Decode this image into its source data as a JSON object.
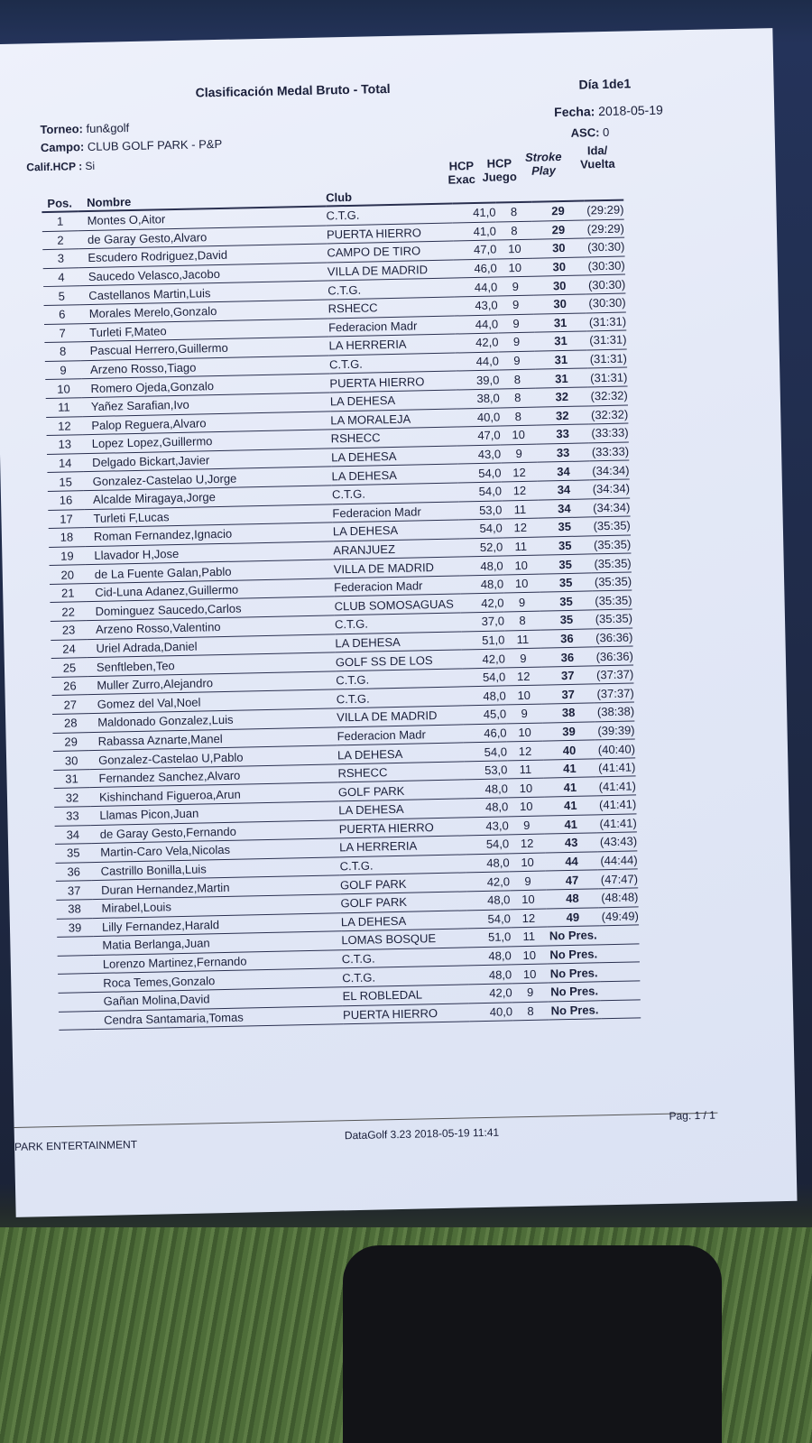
{
  "header": {
    "title": "Clasificación Medal Bruto - Total",
    "dia": "Día 1de1",
    "torneo_label": "Torneo:",
    "torneo": "fun&golf",
    "campo_label": "Campo:",
    "campo": "CLUB GOLF PARK - P&P",
    "calif_label": "Calif.HCP :",
    "calif": "Si",
    "fecha_label": "Fecha:",
    "fecha": "2018-05-19",
    "asc_label": "ASC:",
    "asc": "0"
  },
  "columns": {
    "pos": "Pos.",
    "nombre": "Nombre",
    "club": "Club",
    "hcp_exac": "HCP Exac",
    "hcp_juego": "HCP Juego",
    "stroke": "Stroke Play",
    "ida": "Ida/ Vuelta"
  },
  "rows": [
    [
      "1",
      "Montes O,Aitor",
      "C.T.G.",
      "41,0",
      "8",
      "29",
      "(29:29)"
    ],
    [
      "2",
      "de Garay Gesto,Alvaro",
      "PUERTA HIERRO",
      "41,0",
      "8",
      "29",
      "(29:29)"
    ],
    [
      "3",
      "Escudero Rodriguez,David",
      "CAMPO DE TIRO",
      "47,0",
      "10",
      "30",
      "(30:30)"
    ],
    [
      "4",
      "Saucedo Velasco,Jacobo",
      "VILLA DE MADRID",
      "46,0",
      "10",
      "30",
      "(30:30)"
    ],
    [
      "5",
      "Castellanos Martin,Luis",
      "C.T.G.",
      "44,0",
      "9",
      "30",
      "(30:30)"
    ],
    [
      "6",
      "Morales Merelo,Gonzalo",
      "RSHECC",
      "43,0",
      "9",
      "30",
      "(30:30)"
    ],
    [
      "7",
      "Turleti F,Mateo",
      "Federacion Madr",
      "44,0",
      "9",
      "31",
      "(31:31)"
    ],
    [
      "8",
      "Pascual Herrero,Guillermo",
      "LA HERRERIA",
      "42,0",
      "9",
      "31",
      "(31:31)"
    ],
    [
      "9",
      "Arzeno Rosso,Tiago",
      "C.T.G.",
      "44,0",
      "9",
      "31",
      "(31:31)"
    ],
    [
      "10",
      "Romero Ojeda,Gonzalo",
      "PUERTA HIERRO",
      "39,0",
      "8",
      "31",
      "(31:31)"
    ],
    [
      "11",
      "Yañez Sarafian,Ivo",
      "LA DEHESA",
      "38,0",
      "8",
      "32",
      "(32:32)"
    ],
    [
      "12",
      "Palop Reguera,Alvaro",
      "LA MORALEJA",
      "40,0",
      "8",
      "32",
      "(32:32)"
    ],
    [
      "13",
      "Lopez Lopez,Guillermo",
      "RSHECC",
      "47,0",
      "10",
      "33",
      "(33:33)"
    ],
    [
      "14",
      "Delgado Bickart,Javier",
      "LA DEHESA",
      "43,0",
      "9",
      "33",
      "(33:33)"
    ],
    [
      "15",
      "Gonzalez-Castelao U,Jorge",
      "LA DEHESA",
      "54,0",
      "12",
      "34",
      "(34:34)"
    ],
    [
      "16",
      "Alcalde Miragaya,Jorge",
      "C.T.G.",
      "54,0",
      "12",
      "34",
      "(34:34)"
    ],
    [
      "17",
      "Turleti F,Lucas",
      "Federacion Madr",
      "53,0",
      "11",
      "34",
      "(34:34)"
    ],
    [
      "18",
      "Roman Fernandez,Ignacio",
      "LA DEHESA",
      "54,0",
      "12",
      "35",
      "(35:35)"
    ],
    [
      "19",
      "Llavador H,Jose",
      "ARANJUEZ",
      "52,0",
      "11",
      "35",
      "(35:35)"
    ],
    [
      "20",
      "de La Fuente Galan,Pablo",
      "VILLA DE MADRID",
      "48,0",
      "10",
      "35",
      "(35:35)"
    ],
    [
      "21",
      "Cid-Luna Adanez,Guillermo",
      "Federacion Madr",
      "48,0",
      "10",
      "35",
      "(35:35)"
    ],
    [
      "22",
      "Dominguez Saucedo,Carlos",
      "CLUB SOMOSAGUAS",
      "42,0",
      "9",
      "35",
      "(35:35)"
    ],
    [
      "23",
      "Arzeno  Rosso,Valentino",
      "C.T.G.",
      "37,0",
      "8",
      "35",
      "(35:35)"
    ],
    [
      "24",
      "Uriel  Adrada,Daniel",
      "LA DEHESA",
      "51,0",
      "11",
      "36",
      "(36:36)"
    ],
    [
      "25",
      "Senftleben,Teo",
      "GOLF SS DE LOS",
      "42,0",
      "9",
      "36",
      "(36:36)"
    ],
    [
      "26",
      "Muller Zurro,Alejandro",
      "C.T.G.",
      "54,0",
      "12",
      "37",
      "(37:37)"
    ],
    [
      "27",
      "Gomez del Val,Noel",
      "C.T.G.",
      "48,0",
      "10",
      "37",
      "(37:37)"
    ],
    [
      "28",
      "Maldonado Gonzalez,Luis",
      "VILLA DE MADRID",
      "45,0",
      "9",
      "38",
      "(38:38)"
    ],
    [
      "29",
      "Rabassa Aznarte,Manel",
      "Federacion Madr",
      "46,0",
      "10",
      "39",
      "(39:39)"
    ],
    [
      "30",
      "Gonzalez-Castelao U,Pablo",
      "LA DEHESA",
      "54,0",
      "12",
      "40",
      "(40:40)"
    ],
    [
      "31",
      "Fernandez Sanchez,Alvaro",
      "RSHECC",
      "53,0",
      "11",
      "41",
      "(41:41)"
    ],
    [
      "32",
      "Kishinchand Figueroa,Arun",
      "GOLF PARK",
      "48,0",
      "10",
      "41",
      "(41:41)"
    ],
    [
      "33",
      "Llamas Picon,Juan",
      "LA DEHESA",
      "48,0",
      "10",
      "41",
      "(41:41)"
    ],
    [
      "34",
      "de Garay Gesto,Fernando",
      "PUERTA HIERRO",
      "43,0",
      "9",
      "41",
      "(41:41)"
    ],
    [
      "35",
      "Martin-Caro Vela,Nicolas",
      "LA HERRERIA",
      "54,0",
      "12",
      "43",
      "(43:43)"
    ],
    [
      "36",
      "Castrillo Bonilla,Luis",
      "C.T.G.",
      "48,0",
      "10",
      "44",
      "(44:44)"
    ],
    [
      "37",
      "Duran Hernandez,Martin",
      "GOLF PARK",
      "42,0",
      "9",
      "47",
      "(47:47)"
    ],
    [
      "38",
      "Mirabel,Louis",
      "GOLF PARK",
      "48,0",
      "10",
      "48",
      "(48:48)"
    ],
    [
      "39",
      "Lilly Fernandez,Harald",
      "LA DEHESA",
      "54,0",
      "12",
      "49",
      "(49:49)"
    ],
    [
      "",
      "Matia Berlanga,Juan",
      "LOMAS BOSQUE",
      "51,0",
      "11",
      "No Pres.",
      ""
    ],
    [
      "",
      "Lorenzo Martinez,Fernando",
      "C.T.G.",
      "48,0",
      "10",
      "No Pres.",
      ""
    ],
    [
      "",
      "Roca Temes,Gonzalo",
      "C.T.G.",
      "48,0",
      "10",
      "No Pres.",
      ""
    ],
    [
      "",
      "Gañan Molina,David",
      "EL ROBLEDAL",
      "42,0",
      "9",
      "No Pres.",
      ""
    ],
    [
      "",
      "Cendra Santamaria,Tomas",
      "PUERTA HIERRO",
      "40,0",
      "8",
      "No Pres.",
      ""
    ]
  ],
  "footer": {
    "left": "PARK ENTERTAINMENT",
    "center": "DataGolf 3.23  2018-05-19 11:41",
    "page": "Pag. 1 / 1"
  }
}
